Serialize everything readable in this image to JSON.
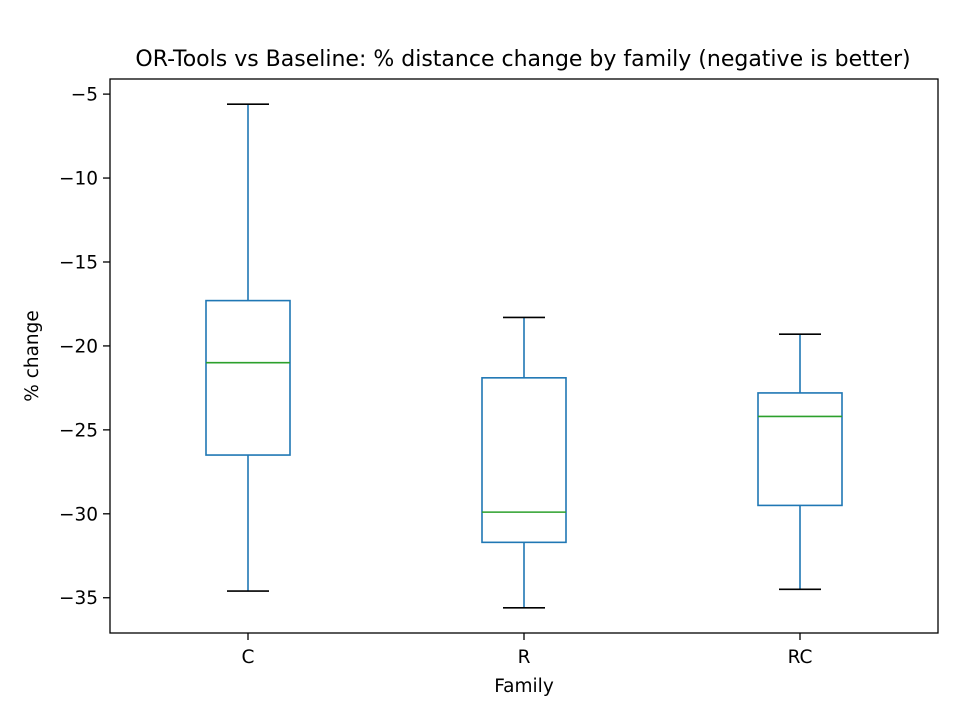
{
  "chart_data": {
    "type": "box",
    "title": "OR-Tools vs Baseline: % distance change by family (negative is better)",
    "xlabel": "Family",
    "ylabel": "% change",
    "ylim": [
      -37.1,
      -4.1
    ],
    "yticks": [
      -5,
      -10,
      -15,
      -20,
      -25,
      -30,
      -35
    ],
    "ytick_labels": [
      "−5",
      "−10",
      "−15",
      "−20",
      "−25",
      "−30",
      "−35"
    ],
    "categories": [
      "C",
      "R",
      "RC"
    ],
    "boxes": [
      {
        "category": "C",
        "whisker_low": -34.6,
        "q1": -26.5,
        "median": -21.0,
        "q3": -17.3,
        "whisker_high": -5.6
      },
      {
        "category": "R",
        "whisker_low": -35.6,
        "q1": -31.7,
        "median": -29.9,
        "q3": -21.9,
        "whisker_high": -18.3
      },
      {
        "category": "RC",
        "whisker_low": -34.5,
        "q1": -29.5,
        "median": -24.2,
        "q3": -22.8,
        "whisker_high": -19.3
      }
    ],
    "grid": false,
    "colors": {
      "box": "#1f77b4",
      "median": "#2ca02c",
      "cap": "#000000",
      "axes": "#000000"
    }
  }
}
